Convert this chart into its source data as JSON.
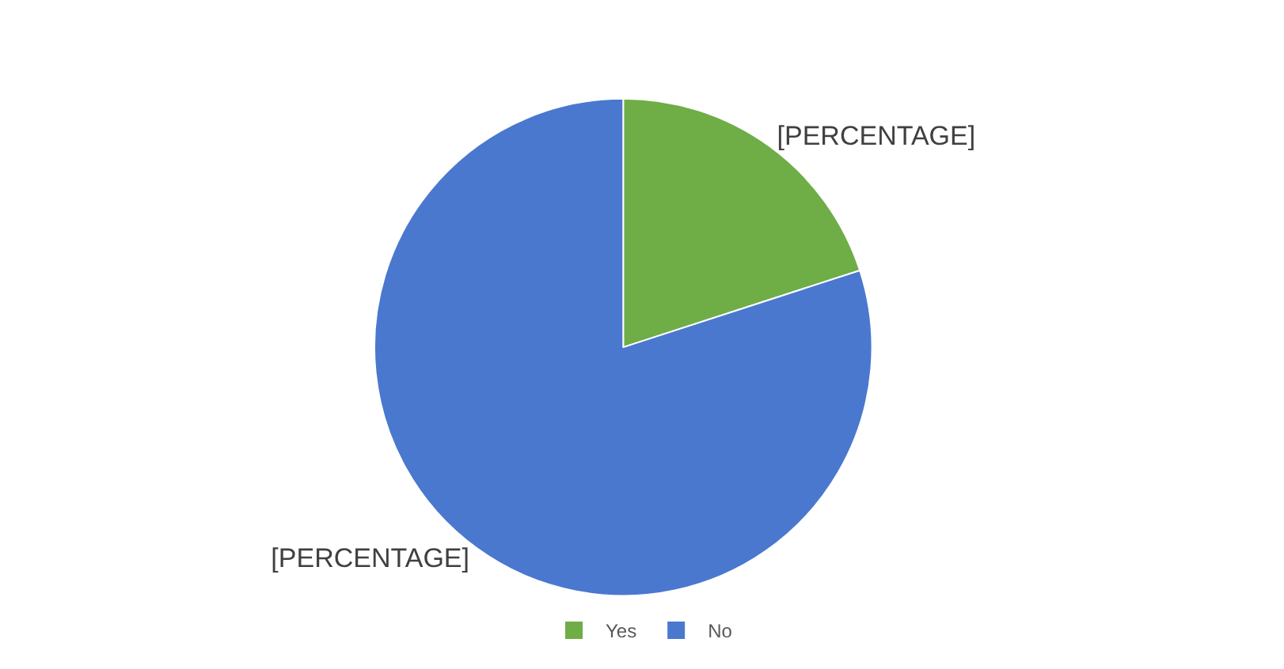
{
  "chart_data": {
    "type": "pie",
    "categories": [
      "Yes",
      "No"
    ],
    "values": [
      20,
      80
    ],
    "colors": [
      "#6fad47",
      "#4a78cf"
    ],
    "value_labels": [
      "[PERCENTAGE]",
      "[PERCENTAGE]"
    ],
    "legend": "bottom"
  }
}
